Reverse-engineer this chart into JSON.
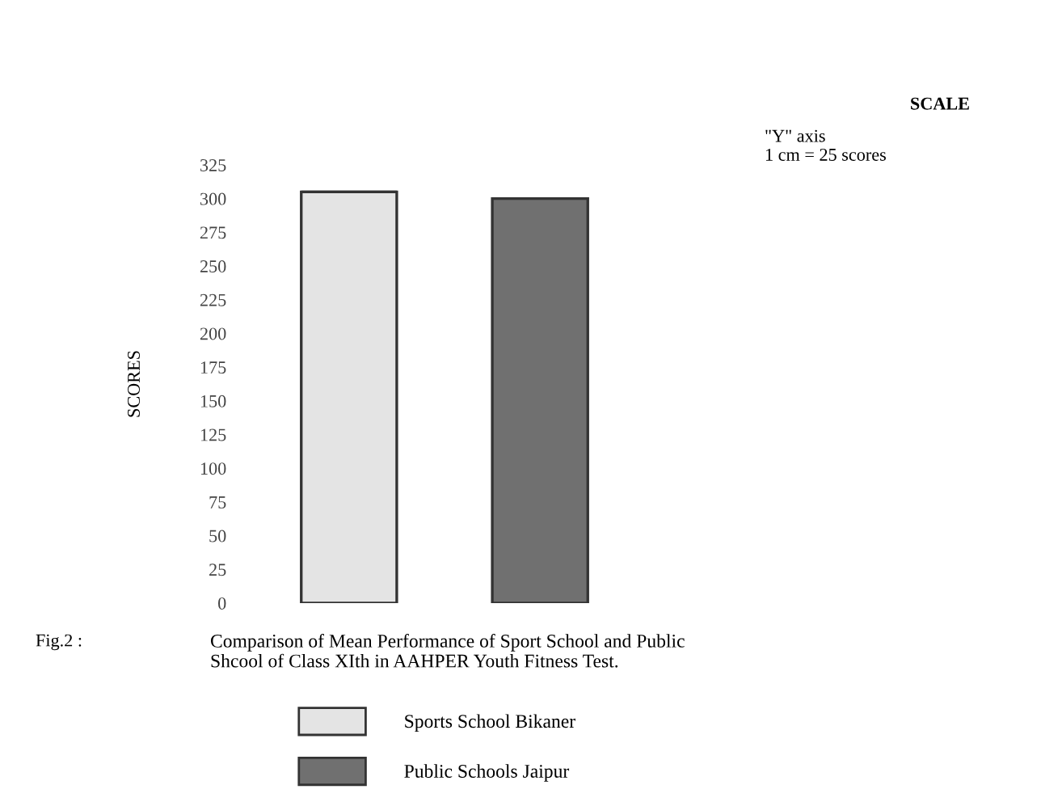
{
  "chart_data": {
    "type": "bar",
    "title": "Comparison of Mean Performance of Sport School and Public\nShcool of Class XIth in AAHPER Youth Fitness Test.",
    "ylabel": "SCORES",
    "categories": [
      null,
      null
    ],
    "series": [
      {
        "name": "Sports School Bikaner",
        "color": "#e4e4e4",
        "values": [
          305,
          null
        ]
      },
      {
        "name": "Public Schools Jaipur",
        "color": "#707070",
        "values": [
          null,
          300
        ]
      }
    ],
    "stacked": true,
    "ylim": [
      0,
      325
    ],
    "yticks": [
      0,
      25,
      50,
      75,
      100,
      125,
      150,
      175,
      200,
      225,
      250,
      275,
      300,
      325
    ],
    "annotations": [
      "Fig.2 :",
      "SCALE",
      "\"Y\" axis\n1 cm = 25 scores"
    ],
    "grid": false,
    "legend": "bottom"
  }
}
